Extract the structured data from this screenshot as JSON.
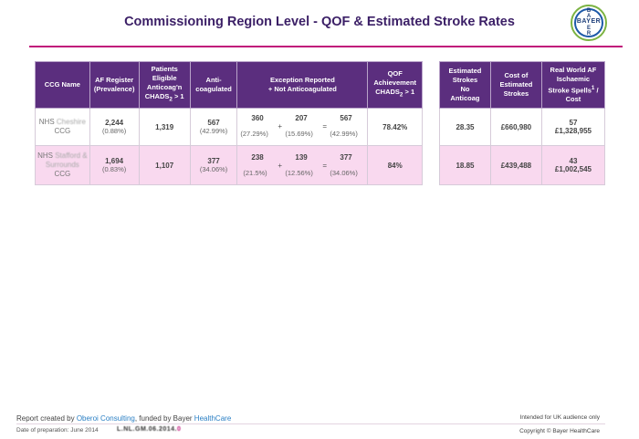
{
  "title": "Commissioning Region Level - QOF & Estimated Stroke Rates",
  "logo": {
    "horizontal": "BAYER",
    "vertical": [
      "B",
      "A",
      "Y",
      "E",
      "R"
    ]
  },
  "left_table": {
    "headers": {
      "ccg": "CCG Name",
      "af_line1": "AF Register",
      "af_line2": "(Prevalence)",
      "elig_line1": "Patients",
      "elig_line2": "Eligible",
      "elig_line3": "Anticoag'n",
      "elig_line4": "CHADS",
      "elig_sub": "2",
      "elig_tail": " > 1",
      "anti_line1": "Anti-",
      "anti_line2": "coagulated",
      "exc_line1": "Exception Reported",
      "exc_line2": "+ Not Anticoagulated",
      "qof_line1": "QOF",
      "qof_line2": "Achievement",
      "qof_line3": "CHADS",
      "qof_sub": "2",
      "qof_tail": " > 1"
    },
    "rows": [
      {
        "ccg_prefix": "NHS",
        "ccg_blur": "Cheshire",
        "ccg_suffix": "CCG",
        "af": "2,244",
        "af_pct": "(0.88%)",
        "eligible": "1,319",
        "anti": "567",
        "anti_pct": "(42.99%)",
        "exc_a": "360",
        "exc_a_pct": "(27.29%)",
        "exc_plus": "+",
        "exc_b": "207",
        "exc_b_pct": "(15.69%)",
        "exc_eq": "=",
        "exc_c": "567",
        "exc_c_pct": "(42.99%)",
        "qof": "78.42%"
      },
      {
        "ccg_prefix": "NHS",
        "ccg_blur": "Stafford & Surrounds",
        "ccg_suffix": "CCG",
        "af": "1,694",
        "af_pct": "(0.83%)",
        "eligible": "1,107",
        "anti": "377",
        "anti_pct": "(34.06%)",
        "exc_a": "238",
        "exc_a_pct": "(21.5%)",
        "exc_plus": "+",
        "exc_b": "139",
        "exc_b_pct": "(12.56%)",
        "exc_eq": "=",
        "exc_c": "377",
        "exc_c_pct": "(34.06%)",
        "qof": "84%"
      }
    ]
  },
  "right_table": {
    "headers": {
      "est_line1": "Estimated",
      "est_line2": "Strokes",
      "est_line3": "No",
      "est_line4": "Anticoag",
      "cost_line1": "Cost of",
      "cost_line2": "Estimated",
      "cost_line3": "Strokes",
      "rw_line1": "Real World AF",
      "rw_line2": "Ischaemic",
      "rw_line3": "Stroke Spells",
      "rw_sup": "1",
      "rw_tail": " /",
      "rw_line4": "Cost"
    },
    "rows": [
      {
        "est": "28.35",
        "cost": "£660,980",
        "rw_count": "57",
        "rw_cost": "£1,328,955"
      },
      {
        "est": "18.85",
        "cost": "£439,488",
        "rw_count": "43",
        "rw_cost": "£1,002,545"
      }
    ]
  },
  "footer": {
    "credit_prefix": "Report created by ",
    "credit_oberoi": "Oberoi Consulting",
    "credit_mid": ", funded by Bayer ",
    "credit_hc": "HealthCare",
    "date": "Date of preparation: June 2014",
    "code_main": "L.NL.GM.06.2014.",
    "code_pink": "0",
    "audience": "Intended for UK audience only",
    "copyright": "Copyright © Bayer HealthCare"
  },
  "colors": {
    "header_purple": "#5b2e7e",
    "title": "#3b1f66",
    "rule": "#c0147a",
    "row_pink": "#f9d9ef"
  }
}
